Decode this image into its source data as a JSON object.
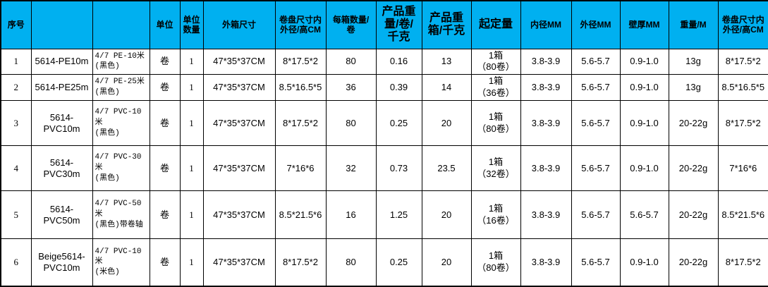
{
  "table": {
    "header_bg": "#00b0f0",
    "grid_color": "#000000",
    "headers": [
      "序号",
      "",
      "",
      "单位",
      "单位\n数量",
      "外箱尺寸",
      "卷盘尺寸内\n外径/高CM",
      "每箱数量/\n卷",
      "产品重\n量/卷/\n千克",
      "产品重\n箱/千克",
      "起定量",
      "内径MM",
      "外径MM",
      "壁厚MM",
      "重量/M",
      "卷盘尺寸内\n外径/高CM"
    ],
    "rows": [
      [
        "1",
        "5614-PE10m",
        "4/7 PE-10米\n(黑色)",
        "卷",
        "1",
        "47*35*37CM",
        "8*17.5*2",
        "80",
        "0.16",
        "13",
        "1箱\n（80卷）",
        "3.8-3.9",
        "5.6-5.7",
        "0.9-1.0",
        "13g",
        "8*17.5*2"
      ],
      [
        "2",
        "5614-PE25m",
        "4/7 PE-25米\n(黑色)",
        "卷",
        "1",
        "47*35*37CM",
        "8.5*16.5*5",
        "36",
        "0.39",
        "14",
        "1箱\n（36卷）",
        "3.8-3.9",
        "5.6-5.7",
        "0.9-1.0",
        "13g",
        "8.5*16.5*5"
      ],
      [
        "3",
        "5614-\nPVC10m",
        "4/7 PVC-10米\n(黑色)",
        "卷",
        "1",
        "47*35*37CM",
        "8*17.5*2",
        "80",
        "0.25",
        "20",
        "1箱\n（80卷）",
        "3.8-3.9",
        "5.6-5.7",
        "0.9-1.0",
        "20-22g",
        "8*17.5*2"
      ],
      [
        "4",
        "5614-\nPVC30m",
        "4/7 PVC-30米\n(黑色)",
        "卷",
        "1",
        "47*35*37CM",
        "7*16*6",
        "32",
        "0.73",
        "23.5",
        "1箱\n（32卷）",
        "3.8-3.9",
        "5.6-5.7",
        "0.9-1.0",
        "20-22g",
        "7*16*6"
      ],
      [
        "5",
        "5614-\nPVC50m",
        "4/7 PVC-50米\n(黑色)带卷轴",
        "卷",
        "1",
        "47*35*37CM",
        "8.5*21.5*6",
        "16",
        "1.25",
        "20",
        "1箱\n（16卷）",
        "3.8-3.9",
        "5.6-5.7",
        "5.6-5.7",
        "20-22g",
        "8.5*21.5*6"
      ],
      [
        "6",
        "Beige5614-\nPVC10m",
        "4/7 PVC-10米\n(米色)",
        "卷",
        "1",
        "47*35*37CM",
        "8*17.5*2",
        "80",
        "0.25",
        "20",
        "1箱\n（80卷）",
        "3.8-3.9",
        "5.6-5.7",
        "0.9-1.0",
        "20-22g",
        "8*17.5*2"
      ]
    ]
  }
}
